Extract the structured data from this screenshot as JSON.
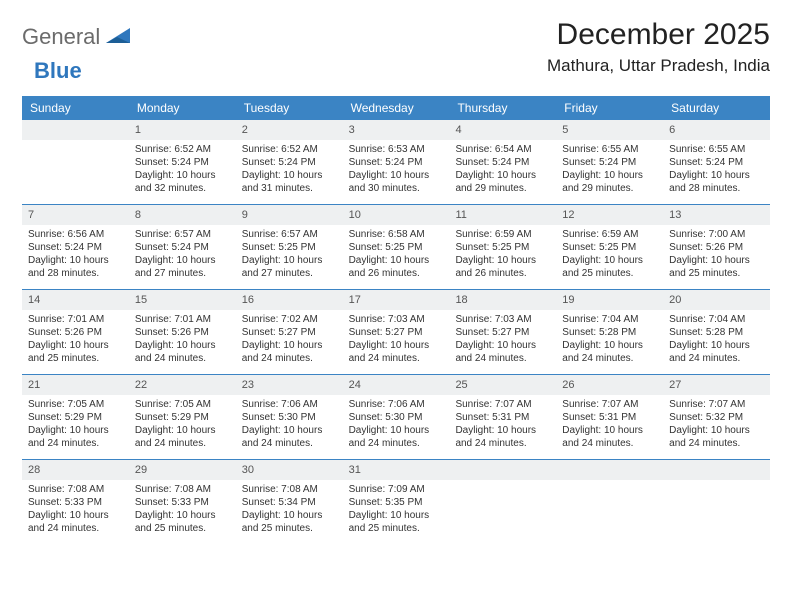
{
  "brand": {
    "general": "General",
    "blue": "Blue"
  },
  "title": "December 2025",
  "location": "Mathura, Uttar Pradesh, India",
  "colors": {
    "header_bg": "#3b84c4",
    "header_text": "#ffffff",
    "daynum_bg": "#eef0f1",
    "rule": "#3b84c4",
    "logo_gray": "#6b6b6b",
    "logo_blue": "#2f77bd"
  },
  "days_of_week": [
    "Sunday",
    "Monday",
    "Tuesday",
    "Wednesday",
    "Thursday",
    "Friday",
    "Saturday"
  ],
  "weeks": [
    [
      null,
      {
        "n": "1",
        "sunrise": "Sunrise: 6:52 AM",
        "sunset": "Sunset: 5:24 PM",
        "daylight": "Daylight: 10 hours and 32 minutes."
      },
      {
        "n": "2",
        "sunrise": "Sunrise: 6:52 AM",
        "sunset": "Sunset: 5:24 PM",
        "daylight": "Daylight: 10 hours and 31 minutes."
      },
      {
        "n": "3",
        "sunrise": "Sunrise: 6:53 AM",
        "sunset": "Sunset: 5:24 PM",
        "daylight": "Daylight: 10 hours and 30 minutes."
      },
      {
        "n": "4",
        "sunrise": "Sunrise: 6:54 AM",
        "sunset": "Sunset: 5:24 PM",
        "daylight": "Daylight: 10 hours and 29 minutes."
      },
      {
        "n": "5",
        "sunrise": "Sunrise: 6:55 AM",
        "sunset": "Sunset: 5:24 PM",
        "daylight": "Daylight: 10 hours and 29 minutes."
      },
      {
        "n": "6",
        "sunrise": "Sunrise: 6:55 AM",
        "sunset": "Sunset: 5:24 PM",
        "daylight": "Daylight: 10 hours and 28 minutes."
      }
    ],
    [
      {
        "n": "7",
        "sunrise": "Sunrise: 6:56 AM",
        "sunset": "Sunset: 5:24 PM",
        "daylight": "Daylight: 10 hours and 28 minutes."
      },
      {
        "n": "8",
        "sunrise": "Sunrise: 6:57 AM",
        "sunset": "Sunset: 5:24 PM",
        "daylight": "Daylight: 10 hours and 27 minutes."
      },
      {
        "n": "9",
        "sunrise": "Sunrise: 6:57 AM",
        "sunset": "Sunset: 5:25 PM",
        "daylight": "Daylight: 10 hours and 27 minutes."
      },
      {
        "n": "10",
        "sunrise": "Sunrise: 6:58 AM",
        "sunset": "Sunset: 5:25 PM",
        "daylight": "Daylight: 10 hours and 26 minutes."
      },
      {
        "n": "11",
        "sunrise": "Sunrise: 6:59 AM",
        "sunset": "Sunset: 5:25 PM",
        "daylight": "Daylight: 10 hours and 26 minutes."
      },
      {
        "n": "12",
        "sunrise": "Sunrise: 6:59 AM",
        "sunset": "Sunset: 5:25 PM",
        "daylight": "Daylight: 10 hours and 25 minutes."
      },
      {
        "n": "13",
        "sunrise": "Sunrise: 7:00 AM",
        "sunset": "Sunset: 5:26 PM",
        "daylight": "Daylight: 10 hours and 25 minutes."
      }
    ],
    [
      {
        "n": "14",
        "sunrise": "Sunrise: 7:01 AM",
        "sunset": "Sunset: 5:26 PM",
        "daylight": "Daylight: 10 hours and 25 minutes."
      },
      {
        "n": "15",
        "sunrise": "Sunrise: 7:01 AM",
        "sunset": "Sunset: 5:26 PM",
        "daylight": "Daylight: 10 hours and 24 minutes."
      },
      {
        "n": "16",
        "sunrise": "Sunrise: 7:02 AM",
        "sunset": "Sunset: 5:27 PM",
        "daylight": "Daylight: 10 hours and 24 minutes."
      },
      {
        "n": "17",
        "sunrise": "Sunrise: 7:03 AM",
        "sunset": "Sunset: 5:27 PM",
        "daylight": "Daylight: 10 hours and 24 minutes."
      },
      {
        "n": "18",
        "sunrise": "Sunrise: 7:03 AM",
        "sunset": "Sunset: 5:27 PM",
        "daylight": "Daylight: 10 hours and 24 minutes."
      },
      {
        "n": "19",
        "sunrise": "Sunrise: 7:04 AM",
        "sunset": "Sunset: 5:28 PM",
        "daylight": "Daylight: 10 hours and 24 minutes."
      },
      {
        "n": "20",
        "sunrise": "Sunrise: 7:04 AM",
        "sunset": "Sunset: 5:28 PM",
        "daylight": "Daylight: 10 hours and 24 minutes."
      }
    ],
    [
      {
        "n": "21",
        "sunrise": "Sunrise: 7:05 AM",
        "sunset": "Sunset: 5:29 PM",
        "daylight": "Daylight: 10 hours and 24 minutes."
      },
      {
        "n": "22",
        "sunrise": "Sunrise: 7:05 AM",
        "sunset": "Sunset: 5:29 PM",
        "daylight": "Daylight: 10 hours and 24 minutes."
      },
      {
        "n": "23",
        "sunrise": "Sunrise: 7:06 AM",
        "sunset": "Sunset: 5:30 PM",
        "daylight": "Daylight: 10 hours and 24 minutes."
      },
      {
        "n": "24",
        "sunrise": "Sunrise: 7:06 AM",
        "sunset": "Sunset: 5:30 PM",
        "daylight": "Daylight: 10 hours and 24 minutes."
      },
      {
        "n": "25",
        "sunrise": "Sunrise: 7:07 AM",
        "sunset": "Sunset: 5:31 PM",
        "daylight": "Daylight: 10 hours and 24 minutes."
      },
      {
        "n": "26",
        "sunrise": "Sunrise: 7:07 AM",
        "sunset": "Sunset: 5:31 PM",
        "daylight": "Daylight: 10 hours and 24 minutes."
      },
      {
        "n": "27",
        "sunrise": "Sunrise: 7:07 AM",
        "sunset": "Sunset: 5:32 PM",
        "daylight": "Daylight: 10 hours and 24 minutes."
      }
    ],
    [
      {
        "n": "28",
        "sunrise": "Sunrise: 7:08 AM",
        "sunset": "Sunset: 5:33 PM",
        "daylight": "Daylight: 10 hours and 24 minutes."
      },
      {
        "n": "29",
        "sunrise": "Sunrise: 7:08 AM",
        "sunset": "Sunset: 5:33 PM",
        "daylight": "Daylight: 10 hours and 25 minutes."
      },
      {
        "n": "30",
        "sunrise": "Sunrise: 7:08 AM",
        "sunset": "Sunset: 5:34 PM",
        "daylight": "Daylight: 10 hours and 25 minutes."
      },
      {
        "n": "31",
        "sunrise": "Sunrise: 7:09 AM",
        "sunset": "Sunset: 5:35 PM",
        "daylight": "Daylight: 10 hours and 25 minutes."
      },
      null,
      null,
      null
    ]
  ]
}
